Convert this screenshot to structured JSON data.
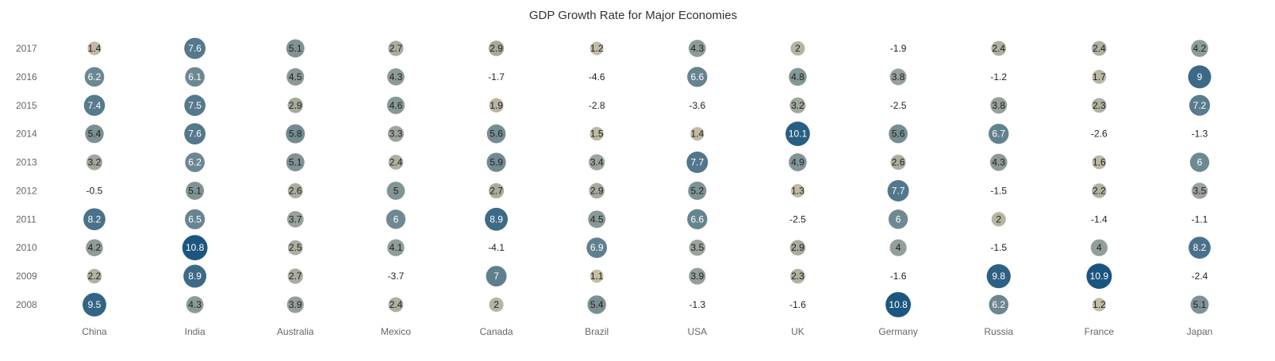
{
  "chart_data": {
    "type": "bubble-matrix",
    "title": "GDP Growth Rate for Major Economies",
    "categories": [
      "China",
      "India",
      "Australia",
      "Mexico",
      "Canada",
      "Brazil",
      "USA",
      "UK",
      "Germany",
      "Russia",
      "France",
      "Japan"
    ],
    "years": [
      "2017",
      "2016",
      "2015",
      "2014",
      "2013",
      "2012",
      "2011",
      "2010",
      "2009",
      "2008"
    ],
    "values": [
      [
        1.4,
        7.6,
        5.1,
        2.7,
        2.9,
        1.2,
        4.3,
        2,
        -1.9,
        2.4,
        2.4,
        4.2
      ],
      [
        6.2,
        6.1,
        4.5,
        4.3,
        -1.7,
        -4.6,
        6.6,
        4.8,
        3.8,
        -1.2,
        1.7,
        9
      ],
      [
        7.4,
        7.5,
        2.9,
        4.6,
        1.9,
        -2.8,
        -3.6,
        3.2,
        -2.5,
        3.8,
        2.3,
        7.2
      ],
      [
        5.4,
        7.6,
        5.8,
        3.3,
        5.6,
        1.5,
        1.4,
        10.1,
        5.6,
        6.7,
        -2.6,
        -1.3
      ],
      [
        3.2,
        6.2,
        5.1,
        2.4,
        5.9,
        3.4,
        7.7,
        4.9,
        2.6,
        4.3,
        1.6,
        6
      ],
      [
        -0.5,
        5.1,
        2.6,
        5,
        2.7,
        2.9,
        5.2,
        1.3,
        7.7,
        -1.5,
        2.2,
        3.5
      ],
      [
        8.2,
        6.5,
        3.7,
        6,
        8.9,
        4.5,
        6.6,
        -2.5,
        6,
        2,
        -1.4,
        -1.1
      ],
      [
        4.2,
        10.8,
        2.5,
        4.1,
        -4.1,
        6.9,
        3.5,
        2.9,
        4,
        -1.5,
        4,
        8.2
      ],
      [
        2.2,
        8.9,
        2.7,
        -3.7,
        7,
        1.1,
        3.9,
        2.3,
        -1.6,
        9.8,
        10.9,
        -2.4
      ],
      [
        9.5,
        4.3,
        3.9,
        2.4,
        2,
        5.4,
        -1.3,
        -1.6,
        10.8,
        6.2,
        1.2,
        5.1
      ]
    ],
    "color_low": "#d8c9a8",
    "color_high": "#1a5580",
    "legend": "none",
    "grid": false
  }
}
